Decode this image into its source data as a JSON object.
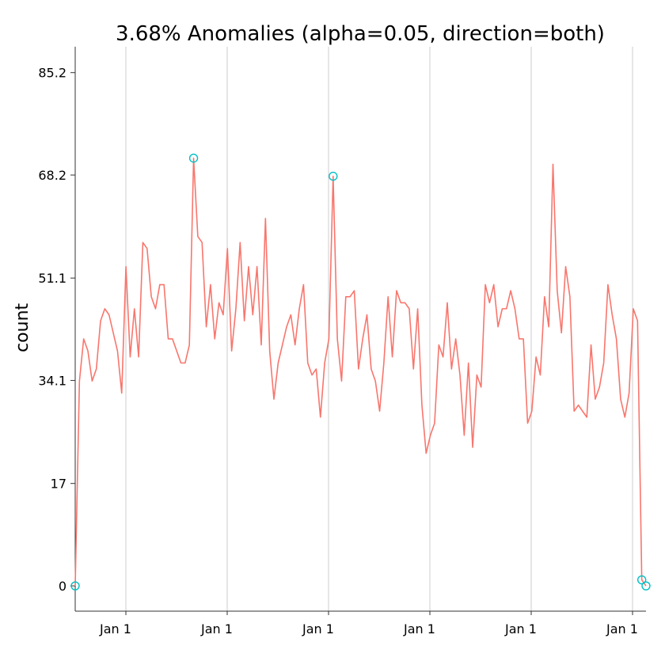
{
  "chart_data": {
    "type": "line",
    "title": "3.68% Anomalies (alpha=0.05, direction=both)",
    "xlabel": "",
    "ylabel": "count",
    "ylim": [
      -4.2,
      89.5
    ],
    "y_ticks": [
      0,
      17,
      34.1,
      51.1,
      68.2,
      85.2
    ],
    "y_tick_labels": [
      "0",
      "17",
      "34.1",
      "51.1",
      "68.2",
      "85.2"
    ],
    "x_tick_labels": [
      "Jan  1",
      "Jan  1",
      "Jan  1",
      "Jan  1",
      "Jan  1",
      "Jan  1"
    ],
    "grid": "vertical",
    "line_color": "#F8766D",
    "anomaly_color": "#00BFC4",
    "series": [
      {
        "values": [
          0,
          34,
          41,
          39,
          34,
          36,
          44,
          46,
          45,
          42,
          39,
          32,
          53,
          38,
          46,
          38,
          57,
          56,
          48,
          46,
          50,
          50,
          41,
          41,
          39,
          37,
          37,
          40,
          71,
          58,
          57,
          43,
          50,
          41,
          47,
          45,
          56,
          39,
          46,
          57,
          44,
          53,
          45,
          53,
          40,
          61,
          39,
          31,
          37,
          40,
          43,
          45,
          40,
          46,
          50,
          37,
          35,
          36,
          28,
          37,
          41,
          68,
          41,
          34,
          48,
          48,
          49,
          36,
          41,
          45,
          36,
          34,
          29,
          37,
          48,
          38,
          49,
          47,
          47,
          46,
          36,
          46,
          30,
          22,
          25,
          27,
          40,
          38,
          47,
          36,
          41,
          35,
          25,
          37,
          23,
          35,
          33,
          50,
          47,
          50,
          43,
          46,
          46,
          49,
          46,
          41,
          41,
          27,
          29,
          38,
          35,
          48,
          43,
          70,
          49,
          42,
          53,
          48,
          29,
          30,
          29,
          28,
          40,
          31,
          33,
          37,
          50,
          45,
          41,
          31,
          28,
          32,
          46,
          44,
          1,
          0
        ]
      }
    ],
    "anomalies": [
      {
        "index": 0,
        "value": 0
      },
      {
        "index": 28,
        "value": 71
      },
      {
        "index": 61,
        "value": 68
      },
      {
        "index": 134,
        "value": 1
      },
      {
        "index": 135,
        "value": 0
      }
    ]
  }
}
